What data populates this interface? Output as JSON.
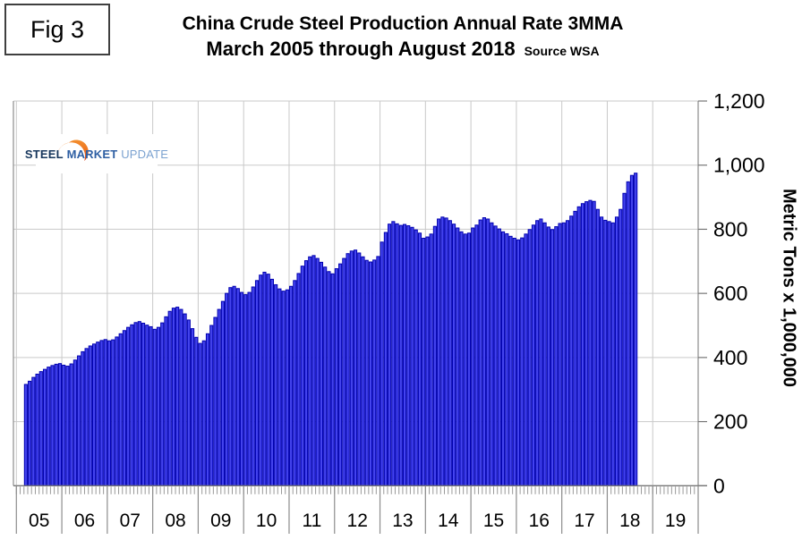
{
  "figure_label": "Fig 3",
  "title": {
    "line1": "China Crude Steel Production Annual Rate 3MMA",
    "line2": "March 2005 through August 2018",
    "source": "Source WSA"
  },
  "logo": {
    "word1": "STEEL",
    "word2": "MARKET",
    "word3": "UPDATE"
  },
  "colors": {
    "bar_fill": "#4444ee",
    "bar_stroke": "#0000b0",
    "grid": "#c9c9c9",
    "frame": "#8c8c8c",
    "baseline": "#767676",
    "tick": "#999999",
    "text": "#000000",
    "logo_orange": "#f07d23",
    "logo_orange_deep": "#d94f1e"
  },
  "chart_data": {
    "type": "bar",
    "title": "China Crude Steel Production Annual Rate 3MMA",
    "subtitle": "March 2005 through August 2018",
    "source": "Source WSA",
    "xlabel": "",
    "ylabel": "Metric Tons x 1,000,000",
    "ylim": [
      0,
      1200
    ],
    "grid": true,
    "legend": false,
    "y_ticks": [
      0,
      200,
      400,
      600,
      800,
      1000,
      1200
    ],
    "y_tick_labels": [
      "0",
      "200",
      "400",
      "600",
      "800",
      "1,000",
      "1,200"
    ],
    "x_year_labels": [
      "05",
      "06",
      "07",
      "08",
      "09",
      "10",
      "11",
      "12",
      "13",
      "14",
      "15",
      "16",
      "17",
      "18",
      "19"
    ],
    "start_month": "2005-03",
    "end_month": "2018-08",
    "first_month_offset": 2,
    "months_per_year": 12,
    "series_name": "Annualized crude steel production rate, 3-month moving average",
    "values": [
      316,
      326,
      338,
      348,
      356,
      363,
      370,
      375,
      379,
      381,
      376,
      373,
      380,
      392,
      405,
      418,
      428,
      436,
      442,
      448,
      453,
      456,
      452,
      455,
      464,
      474,
      484,
      494,
      502,
      509,
      512,
      507,
      501,
      496,
      488,
      494,
      508,
      527,
      544,
      554,
      557,
      550,
      536,
      517,
      490,
      463,
      444,
      452,
      474,
      500,
      525,
      550,
      575,
      600,
      618,
      622,
      615,
      603,
      596,
      603,
      620,
      640,
      657,
      666,
      660,
      644,
      627,
      614,
      607,
      611,
      622,
      640,
      662,
      685,
      702,
      714,
      718,
      709,
      697,
      682,
      668,
      661,
      677,
      692,
      709,
      724,
      732,
      735,
      726,
      714,
      703,
      698,
      704,
      715,
      760,
      790,
      816,
      824,
      817,
      812,
      815,
      811,
      806,
      798,
      788,
      772,
      776,
      785,
      809,
      832,
      838,
      835,
      827,
      816,
      804,
      792,
      785,
      788,
      804,
      813,
      829,
      836,
      832,
      820,
      810,
      801,
      792,
      786,
      778,
      772,
      767,
      773,
      785,
      799,
      813,
      827,
      832,
      820,
      807,
      799,
      808,
      818,
      820,
      827,
      841,
      856,
      870,
      880,
      886,
      890,
      887,
      862,
      838,
      828,
      824,
      820,
      838,
      862,
      912,
      948,
      968,
      975
    ]
  }
}
